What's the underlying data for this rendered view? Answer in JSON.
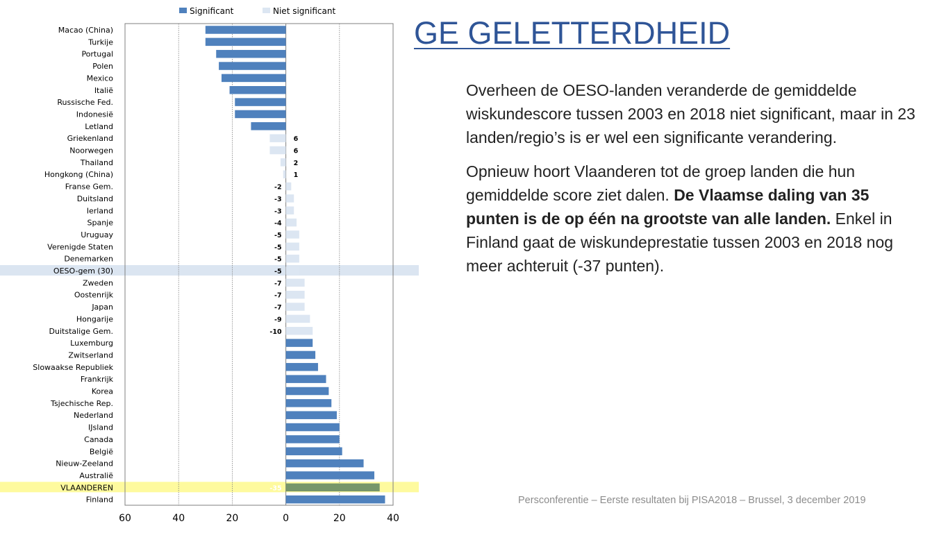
{
  "slide": {
    "title": "GE GELETTERDHEID",
    "paragraph1": "Overheen de OESO-landen veranderde de gemiddelde wiskundescore tussen 2003 en 2018 niet significant, maar in 23 landen/regio’s is er wel een significante verandering.",
    "paragraph2_before": "Opnieuw hoort Vlaanderen tot de groep landen die hun gemiddelde score ziet dalen. ",
    "paragraph2_bold": "De Vlaamse daling van 35 punten is de op één na grootste van alle landen.",
    "paragraph2_after": " Enkel in Finland gaat de wiskundeprestatie tussen 2003 en 2018 nog meer achteruit (-37 punten).",
    "footer": "Persconferentie – Eerste resultaten bij PISA2018 – Brussel, 3 december 2019"
  },
  "colors": {
    "significant": "#4f81bd",
    "not_significant": "#dce6f2",
    "highlight_oeso": "#dbe5f1",
    "highlight_vlaanderen": "#fefa9e",
    "vlaanderen_bar": "#77966a",
    "title": "#2f5597"
  },
  "chart_data": {
    "type": "bar",
    "orientation": "horizontal",
    "legend": [
      "Significant",
      "Niet significant"
    ],
    "legend_position": "top",
    "xlim": [
      60,
      -40
    ],
    "x_ticks": [
      "60",
      "40",
      "20",
      "0",
      "20",
      "40"
    ],
    "grid": true,
    "categories": [
      "Macao (China)",
      "Turkije",
      "Portugal",
      "Polen",
      "Mexico",
      "Italië",
      "Russische Fed.",
      "Indonesië",
      "Letland",
      "Griekenland",
      "Noorwegen",
      "Thailand",
      "Hongkong (China)",
      "Franse Gem.",
      "Duitsland",
      "Ierland",
      "Spanje",
      "Uruguay",
      "Verenigde Staten",
      "Denemarken",
      "OESO-gem (30)",
      "Zweden",
      "Oostenrijk",
      "Japan",
      "Hongarije",
      "Duitstalige Gem.",
      "Luxemburg",
      "Zwitserland",
      "Slowaakse Republiek",
      "Frankrijk",
      "Korea",
      "Tsjechische Rep.",
      "Nederland",
      "IJsland",
      "Canada",
      "België",
      "Nieuw-Zeeland",
      "Australië",
      "VLAANDEREN",
      "Finland"
    ],
    "values": [
      30,
      30,
      26,
      25,
      24,
      21,
      19,
      19,
      13,
      6,
      6,
      2,
      1,
      -2,
      -3,
      -3,
      -4,
      -5,
      -5,
      -5,
      -5,
      -7,
      -7,
      -7,
      -9,
      -10,
      -10,
      -11,
      -12,
      -15,
      -16,
      -17,
      -19,
      -20,
      -20,
      -21,
      -29,
      -33,
      -35,
      -37
    ],
    "significant": [
      true,
      true,
      true,
      true,
      true,
      true,
      true,
      true,
      true,
      false,
      false,
      false,
      false,
      false,
      false,
      false,
      false,
      false,
      false,
      false,
      false,
      false,
      false,
      false,
      false,
      false,
      true,
      true,
      true,
      true,
      true,
      true,
      true,
      true,
      true,
      true,
      true,
      true,
      true,
      true
    ],
    "highlighted": [
      "OESO-gem (30)",
      "VLAANDEREN"
    ]
  }
}
